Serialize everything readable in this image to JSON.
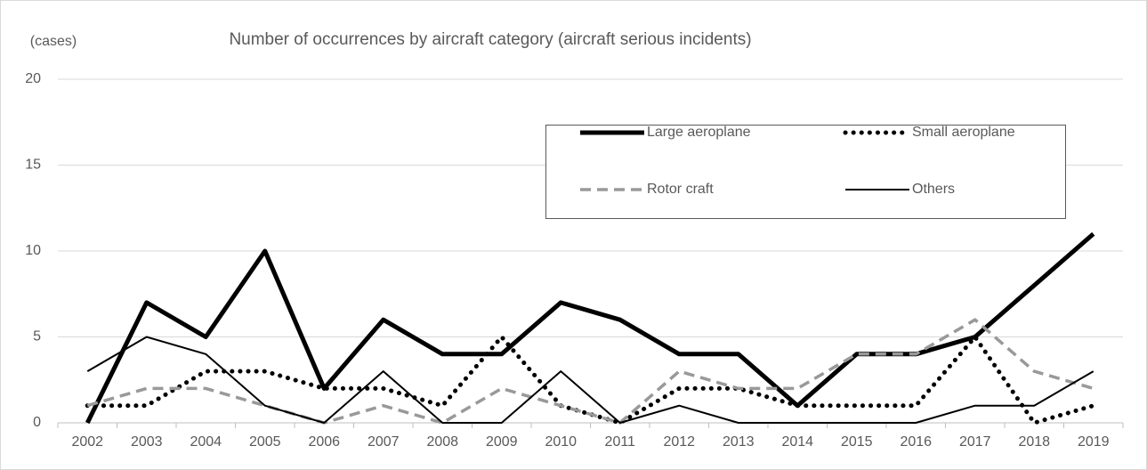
{
  "chart_data": {
    "type": "line",
    "title": "Number of occurrences by aircraft category (aircraft serious incidents)",
    "y_label": "(cases)",
    "categories": [
      "2002",
      "2003",
      "2004",
      "2005",
      "2006",
      "2007",
      "2008",
      "2009",
      "2010",
      "2011",
      "2012",
      "2013",
      "2014",
      "2015",
      "2016",
      "2017",
      "2018",
      "2019"
    ],
    "series": [
      {
        "name": "Large aeroplane",
        "color": "#000000",
        "style": "solid",
        "linewidth": 5,
        "values": [
          0,
          7,
          5,
          10,
          2,
          6,
          4,
          4,
          7,
          6,
          4,
          4,
          1,
          4,
          4,
          5,
          8,
          11
        ]
      },
      {
        "name": "Small aeroplane",
        "color": "#000000",
        "style": "dotted",
        "linewidth": 5,
        "values": [
          1,
          1,
          3,
          3,
          2,
          2,
          1,
          5,
          1,
          0,
          2,
          2,
          1,
          1,
          1,
          5,
          0,
          1
        ]
      },
      {
        "name": "Rotor craft",
        "color": "#999999",
        "style": "dashed",
        "linewidth": 3.5,
        "values": [
          1,
          2,
          2,
          1,
          0,
          1,
          0,
          2,
          1,
          0,
          3,
          2,
          2,
          4,
          4,
          6,
          3,
          2
        ]
      },
      {
        "name": "Others",
        "color": "#000000",
        "style": "solid",
        "linewidth": 2,
        "values": [
          3,
          5,
          4,
          1,
          0,
          3,
          0,
          0,
          3,
          0,
          1,
          0,
          0,
          0,
          0,
          1,
          1,
          3
        ]
      }
    ],
    "ylim": [
      0,
      20
    ],
    "yticks": [
      0,
      5,
      10,
      15,
      20
    ],
    "grid": true,
    "legend": "top-right"
  }
}
